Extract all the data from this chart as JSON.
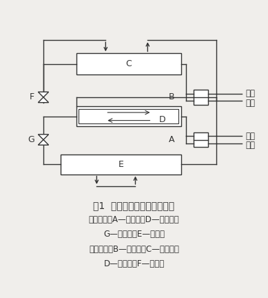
{
  "title_line1": "图1  复叠式制冷循环系统原理",
  "caption_line1": "低温部分：A—压缩机；D—冷凝器；",
  "caption_line2": "G—节流阀；E—蒸发器",
  "caption_line3": "高温部分：B—压缩机；C—冷凝器；",
  "caption_line4": "D—蒸发器；F—节流阀",
  "bg_color": "#f0eeeb",
  "line_color": "#333333",
  "font_size_title": 10,
  "font_size_caption": 8.5,
  "label_font_size": 9
}
